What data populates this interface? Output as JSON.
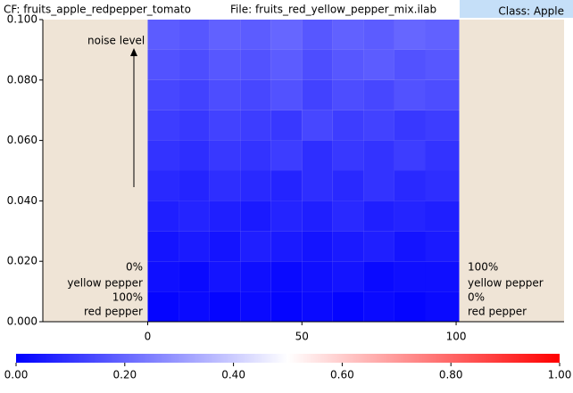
{
  "header": {
    "cf": "CF: fruits_apple_redpepper_tomato",
    "file": "File: fruits_red_yellow_pepper_mix.ilab",
    "class": "Class: Apple"
  },
  "chart_data": {
    "type": "heatmap",
    "xlim": [
      -34,
      135
    ],
    "ylim": [
      0,
      0.1
    ],
    "xticks": [
      0,
      50,
      100
    ],
    "yticks": [
      {
        "value": 0,
        "label": "0.000"
      },
      {
        "value": 0.02,
        "label": "0.020"
      },
      {
        "value": 0.04,
        "label": "0.040"
      },
      {
        "value": 0.06,
        "label": "0.060"
      },
      {
        "value": 0.08,
        "label": "0.080"
      },
      {
        "value": 0.1,
        "label": "0.100"
      }
    ],
    "x_bins": [
      0,
      10,
      20,
      30,
      40,
      50,
      60,
      70,
      80,
      90,
      101
    ],
    "y_bins": [
      0,
      0.01,
      0.02,
      0.03,
      0.04,
      0.05,
      0.06,
      0.07,
      0.08,
      0.09,
      0.1
    ],
    "z": [
      [
        0.01,
        0.02,
        0.01,
        0.02,
        0.01,
        0.02,
        0.01,
        0.02,
        0.01,
        0.02
      ],
      [
        0.03,
        0.02,
        0.04,
        0.03,
        0.02,
        0.03,
        0.04,
        0.02,
        0.03,
        0.03
      ],
      [
        0.04,
        0.05,
        0.04,
        0.06,
        0.05,
        0.04,
        0.05,
        0.06,
        0.04,
        0.05
      ],
      [
        0.06,
        0.07,
        0.06,
        0.05,
        0.07,
        0.06,
        0.08,
        0.06,
        0.07,
        0.06
      ],
      [
        0.08,
        0.07,
        0.09,
        0.08,
        0.07,
        0.09,
        0.08,
        0.1,
        0.08,
        0.09
      ],
      [
        0.1,
        0.09,
        0.11,
        0.1,
        0.12,
        0.09,
        0.11,
        0.1,
        0.12,
        0.1
      ],
      [
        0.12,
        0.11,
        0.13,
        0.12,
        0.11,
        0.14,
        0.12,
        0.13,
        0.11,
        0.12
      ],
      [
        0.14,
        0.13,
        0.15,
        0.14,
        0.16,
        0.13,
        0.15,
        0.14,
        0.16,
        0.15
      ],
      [
        0.16,
        0.15,
        0.17,
        0.16,
        0.18,
        0.15,
        0.17,
        0.18,
        0.16,
        0.17
      ],
      [
        0.18,
        0.17,
        0.19,
        0.18,
        0.2,
        0.17,
        0.19,
        0.18,
        0.2,
        0.19
      ]
    ],
    "colormap": [
      "#0000ff",
      "#ffffff",
      "#ff0000"
    ],
    "clim": [
      0,
      1
    ],
    "cticks": [
      {
        "value": 0,
        "label": "0.00"
      },
      {
        "value": 0.2,
        "label": "0.20"
      },
      {
        "value": 0.4,
        "label": "0.40"
      },
      {
        "value": 0.6,
        "label": "0.60"
      },
      {
        "value": 0.8,
        "label": "0.80"
      },
      {
        "value": 1,
        "label": "1.00"
      }
    ],
    "annotations": {
      "noise": "noise level",
      "left": [
        "0%",
        "yellow pepper",
        "100%",
        "red pepper"
      ],
      "right": [
        "100%",
        "yellow pepper",
        "0%",
        "red pepper"
      ]
    }
  }
}
